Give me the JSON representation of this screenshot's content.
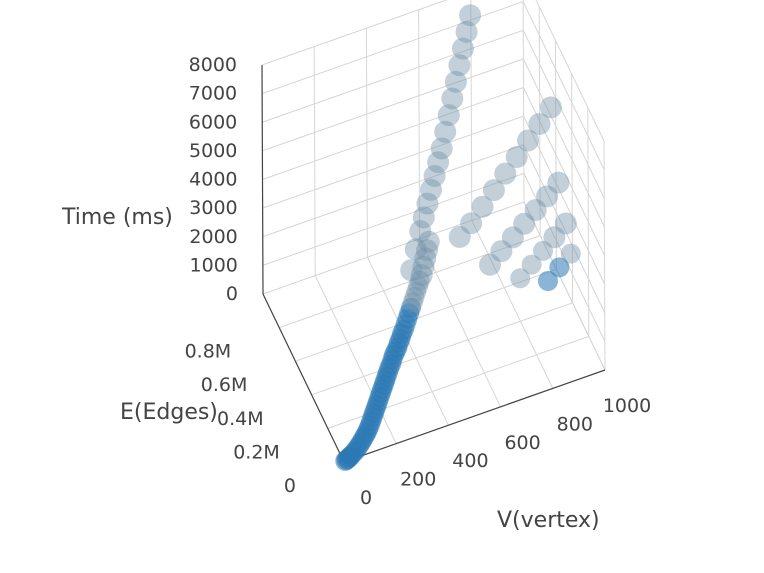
{
  "chart_data": {
    "type": "scatter",
    "projection": "3d",
    "marker_color": "#1f77b4",
    "axes": {
      "x": {
        "title": "V(vertex)",
        "range": [
          0,
          1000
        ],
        "ticks": [
          "0",
          "200",
          "400",
          "600",
          "800",
          "1000"
        ]
      },
      "y": {
        "title": "E(Edges)",
        "range": [
          0,
          1000000
        ],
        "ticks": [
          "0",
          "0.2M",
          "0.4M",
          "0.6M",
          "0.8M"
        ]
      },
      "z": {
        "title": "Time  (ms)",
        "range": [
          0,
          8000
        ],
        "ticks": [
          "0",
          "1000",
          "2000",
          "3000",
          "4000",
          "5000",
          "6000",
          "7000",
          "8000"
        ]
      }
    },
    "points": [
      [
        5,
        500,
        20
      ],
      [
        10,
        1500,
        30
      ],
      [
        15,
        3000,
        40
      ],
      [
        20,
        5000,
        50
      ],
      [
        25,
        8000,
        60
      ],
      [
        30,
        10000,
        70
      ],
      [
        40,
        15000,
        90
      ],
      [
        50,
        20000,
        110
      ],
      [
        60,
        28000,
        130
      ],
      [
        70,
        36000,
        150
      ],
      [
        80,
        45000,
        170
      ],
      [
        90,
        55000,
        190
      ],
      [
        100,
        65000,
        210
      ],
      [
        110,
        75000,
        230
      ],
      [
        120,
        88000,
        250
      ],
      [
        130,
        100000,
        270
      ],
      [
        140,
        115000,
        300
      ],
      [
        150,
        130000,
        320
      ],
      [
        160,
        145000,
        340
      ],
      [
        170,
        160000,
        360
      ],
      [
        180,
        175000,
        380
      ],
      [
        190,
        190000,
        400
      ],
      [
        200,
        205000,
        430
      ],
      [
        210,
        220000,
        450
      ],
      [
        220,
        235000,
        470
      ],
      [
        230,
        250000,
        490
      ],
      [
        240,
        265000,
        510
      ],
      [
        250,
        280000,
        540
      ],
      [
        260,
        295000,
        560
      ],
      [
        270,
        310000,
        600
      ],
      [
        280,
        320000,
        640
      ],
      [
        290,
        335000,
        680
      ],
      [
        300,
        350000,
        720
      ],
      [
        310,
        360000,
        760
      ],
      [
        320,
        370000,
        800
      ],
      [
        330,
        385000,
        850
      ],
      [
        340,
        395000,
        900
      ],
      [
        350,
        410000,
        950
      ],
      [
        360,
        420000,
        1000
      ],
      [
        370,
        430000,
        1100
      ],
      [
        380,
        440000,
        1200
      ],
      [
        390,
        450000,
        1300
      ],
      [
        400,
        460000,
        1400
      ],
      [
        410,
        470000,
        1500
      ],
      [
        420,
        480000,
        1600
      ],
      [
        430,
        490000,
        1700
      ],
      [
        440,
        500000,
        1800
      ],
      [
        450,
        510000,
        1900
      ],
      [
        460,
        520000,
        2000
      ],
      [
        470,
        530000,
        2200
      ],
      [
        480,
        540000,
        2400
      ],
      [
        490,
        550000,
        2600
      ],
      [
        500,
        560000,
        2800
      ],
      [
        420,
        520000,
        2300
      ],
      [
        450,
        560000,
        2700
      ],
      [
        480,
        600000,
        3000
      ],
      [
        500,
        620000,
        3300
      ],
      [
        520,
        640000,
        3600
      ],
      [
        540,
        660000,
        3900
      ],
      [
        560,
        680000,
        4200
      ],
      [
        580,
        700000,
        4500
      ],
      [
        600,
        720000,
        4800
      ],
      [
        620,
        740000,
        5200
      ],
      [
        640,
        760000,
        5600
      ],
      [
        660,
        780000,
        6000
      ],
      [
        680,
        800000,
        6400
      ],
      [
        700,
        820000,
        6800
      ],
      [
        720,
        840000,
        7200
      ],
      [
        740,
        860000,
        7600
      ],
      [
        760,
        880000,
        8000
      ],
      [
        600,
        500000,
        3000
      ],
      [
        650,
        520000,
        3200
      ],
      [
        700,
        540000,
        3500
      ],
      [
        750,
        560000,
        3800
      ],
      [
        800,
        580000,
        4100
      ],
      [
        850,
        600000,
        4400
      ],
      [
        900,
        620000,
        4700
      ],
      [
        950,
        640000,
        5000
      ],
      [
        1000,
        660000,
        5300
      ],
      [
        700,
        450000,
        2000
      ],
      [
        750,
        470000,
        2200
      ],
      [
        800,
        490000,
        2400
      ],
      [
        850,
        510000,
        2600
      ],
      [
        900,
        530000,
        2800
      ],
      [
        950,
        550000,
        3000
      ],
      [
        1000,
        570000,
        3200
      ],
      [
        800,
        400000,
        1500
      ],
      [
        850,
        420000,
        1700
      ],
      [
        900,
        440000,
        1900
      ],
      [
        950,
        460000,
        2100
      ],
      [
        1000,
        480000,
        2300
      ],
      [
        900,
        380000,
        1200
      ],
      [
        950,
        400000,
        1400
      ],
      [
        1000,
        420000,
        1600
      ]
    ]
  }
}
